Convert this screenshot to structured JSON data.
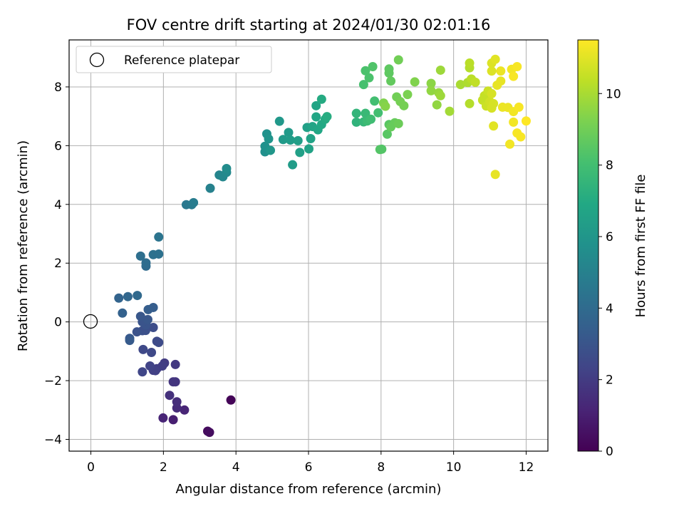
{
  "chart_data": {
    "type": "scatter",
    "title": "FOV centre drift starting at 2024/01/30 02:01:16",
    "xlabel": "Angular distance from reference (arcmin)",
    "ylabel": "Rotation from reference (arcmin)",
    "xlim": [
      -0.6,
      12.6
    ],
    "ylim": [
      -4.4,
      9.6
    ],
    "xticks": [
      0,
      2,
      4,
      6,
      8,
      10,
      12
    ],
    "yticks": [
      -4,
      -2,
      0,
      2,
      4,
      6,
      8
    ],
    "xtick_labels": [
      "0",
      "2",
      "4",
      "6",
      "8",
      "10",
      "12"
    ],
    "ytick_labels": [
      "−4",
      "−2",
      "0",
      "2",
      "4",
      "6",
      "8"
    ],
    "grid": true,
    "legend": {
      "placement": "upper-left",
      "entries": [
        "Reference platepar"
      ]
    },
    "reference_point": {
      "x": 0,
      "y": 0
    },
    "colorbar": {
      "label": "Hours from first FF file",
      "colormap": "viridis",
      "range": [
        0,
        11.5
      ],
      "ticks": [
        0,
        2,
        4,
        6,
        8,
        10
      ],
      "tick_labels": [
        "0",
        "2",
        "4",
        "6",
        "8",
        "10"
      ]
    },
    "points": [
      {
        "x": 3.86,
        "y": -2.66,
        "t": 0.1
      },
      {
        "x": 3.22,
        "y": -3.72,
        "t": 0.3
      },
      {
        "x": 3.27,
        "y": -3.76,
        "t": 0.4
      },
      {
        "x": 2.27,
        "y": -3.33,
        "t": 1.0
      },
      {
        "x": 1.99,
        "y": -3.27,
        "t": 1.2
      },
      {
        "x": 2.58,
        "y": -3.0,
        "t": 1.2
      },
      {
        "x": 2.37,
        "y": -2.93,
        "t": 1.4
      },
      {
        "x": 2.37,
        "y": -2.72,
        "t": 1.5
      },
      {
        "x": 2.17,
        "y": -2.5,
        "t": 1.6
      },
      {
        "x": 2.27,
        "y": -2.04,
        "t": 1.8
      },
      {
        "x": 2.33,
        "y": -2.04,
        "t": 1.8
      },
      {
        "x": 2.33,
        "y": -1.45,
        "t": 1.9
      },
      {
        "x": 2.03,
        "y": -1.4,
        "t": 2.0
      },
      {
        "x": 1.97,
        "y": -1.5,
        "t": 2.1
      },
      {
        "x": 1.82,
        "y": -1.59,
        "t": 2.1
      },
      {
        "x": 1.72,
        "y": -1.65,
        "t": 2.2
      },
      {
        "x": 1.78,
        "y": -1.66,
        "t": 2.2
      },
      {
        "x": 1.63,
        "y": -1.5,
        "t": 2.3
      },
      {
        "x": 1.42,
        "y": -1.7,
        "t": 2.4
      },
      {
        "x": 1.44,
        "y": -0.94,
        "t": 2.5
      },
      {
        "x": 1.67,
        "y": -1.04,
        "t": 2.5
      },
      {
        "x": 1.82,
        "y": -0.66,
        "t": 2.6
      },
      {
        "x": 1.87,
        "y": -0.7,
        "t": 2.6
      },
      {
        "x": 1.72,
        "y": -0.19,
        "t": 2.7
      },
      {
        "x": 1.51,
        "y": -0.29,
        "t": 2.8
      },
      {
        "x": 1.42,
        "y": -0.3,
        "t": 2.8
      },
      {
        "x": 1.27,
        "y": -0.34,
        "t": 2.9
      },
      {
        "x": 1.52,
        "y": -0.1,
        "t": 3.0
      },
      {
        "x": 1.42,
        "y": 0.0,
        "t": 3.0
      },
      {
        "x": 1.57,
        "y": 0.08,
        "t": 3.1
      },
      {
        "x": 1.37,
        "y": 0.19,
        "t": 3.1
      },
      {
        "x": 1.07,
        "y": -0.56,
        "t": 3.2
      },
      {
        "x": 1.07,
        "y": -0.63,
        "t": 3.3
      },
      {
        "x": 1.58,
        "y": 0.42,
        "t": 3.4
      },
      {
        "x": 1.72,
        "y": 0.49,
        "t": 3.4
      },
      {
        "x": 0.87,
        "y": 0.3,
        "t": 3.6
      },
      {
        "x": 0.77,
        "y": 0.81,
        "t": 3.7
      },
      {
        "x": 1.02,
        "y": 0.86,
        "t": 3.8
      },
      {
        "x": 1.28,
        "y": 0.9,
        "t": 3.9
      },
      {
        "x": 1.52,
        "y": 1.9,
        "t": 4.0
      },
      {
        "x": 1.52,
        "y": 2.01,
        "t": 4.1
      },
      {
        "x": 1.37,
        "y": 2.24,
        "t": 4.2
      },
      {
        "x": 1.72,
        "y": 2.29,
        "t": 4.3
      },
      {
        "x": 1.87,
        "y": 2.31,
        "t": 4.3
      },
      {
        "x": 1.87,
        "y": 2.89,
        "t": 4.4
      },
      {
        "x": 2.63,
        "y": 3.99,
        "t": 4.6
      },
      {
        "x": 2.78,
        "y": 3.99,
        "t": 4.7
      },
      {
        "x": 2.83,
        "y": 4.06,
        "t": 4.8
      },
      {
        "x": 3.29,
        "y": 4.55,
        "t": 5.0
      },
      {
        "x": 3.54,
        "y": 5.0,
        "t": 5.2
      },
      {
        "x": 3.64,
        "y": 4.94,
        "t": 5.3
      },
      {
        "x": 3.74,
        "y": 5.09,
        "t": 5.4
      },
      {
        "x": 3.74,
        "y": 5.22,
        "t": 5.5
      },
      {
        "x": 4.8,
        "y": 5.79,
        "t": 5.7
      },
      {
        "x": 4.8,
        "y": 5.98,
        "t": 5.8
      },
      {
        "x": 4.85,
        "y": 6.4,
        "t": 5.8
      },
      {
        "x": 4.9,
        "y": 6.23,
        "t": 5.9
      },
      {
        "x": 4.95,
        "y": 5.84,
        "t": 6.0
      },
      {
        "x": 5.2,
        "y": 6.83,
        "t": 6.1
      },
      {
        "x": 5.3,
        "y": 6.21,
        "t": 6.2
      },
      {
        "x": 5.45,
        "y": 6.45,
        "t": 6.2
      },
      {
        "x": 5.5,
        "y": 6.19,
        "t": 6.3
      },
      {
        "x": 5.56,
        "y": 5.35,
        "t": 6.3
      },
      {
        "x": 5.71,
        "y": 6.17,
        "t": 6.4
      },
      {
        "x": 5.76,
        "y": 5.77,
        "t": 6.5
      },
      {
        "x": 5.96,
        "y": 6.62,
        "t": 6.5
      },
      {
        "x": 6.01,
        "y": 5.89,
        "t": 6.6
      },
      {
        "x": 6.06,
        "y": 6.24,
        "t": 6.6
      },
      {
        "x": 6.11,
        "y": 6.65,
        "t": 6.7
      },
      {
        "x": 6.21,
        "y": 7.36,
        "t": 6.7
      },
      {
        "x": 6.21,
        "y": 6.98,
        "t": 6.8
      },
      {
        "x": 6.26,
        "y": 6.54,
        "t": 6.8
      },
      {
        "x": 6.36,
        "y": 6.72,
        "t": 6.9
      },
      {
        "x": 6.36,
        "y": 7.58,
        "t": 7.0
      },
      {
        "x": 6.46,
        "y": 6.9,
        "t": 7.0
      },
      {
        "x": 6.51,
        "y": 6.99,
        "t": 7.1
      },
      {
        "x": 7.32,
        "y": 6.8,
        "t": 7.4
      },
      {
        "x": 7.32,
        "y": 7.1,
        "t": 7.5
      },
      {
        "x": 7.52,
        "y": 6.81,
        "t": 7.6
      },
      {
        "x": 7.57,
        "y": 7.1,
        "t": 7.7
      },
      {
        "x": 7.62,
        "y": 6.84,
        "t": 7.8
      },
      {
        "x": 7.72,
        "y": 6.9,
        "t": 7.9
      },
      {
        "x": 7.82,
        "y": 7.52,
        "t": 8.0
      },
      {
        "x": 7.92,
        "y": 7.12,
        "t": 8.0
      },
      {
        "x": 7.52,
        "y": 8.08,
        "t": 8.1
      },
      {
        "x": 7.57,
        "y": 8.55,
        "t": 8.2
      },
      {
        "x": 7.67,
        "y": 8.31,
        "t": 8.2
      },
      {
        "x": 7.77,
        "y": 8.69,
        "t": 8.3
      },
      {
        "x": 7.97,
        "y": 5.87,
        "t": 8.4
      },
      {
        "x": 8.02,
        "y": 5.88,
        "t": 8.4
      },
      {
        "x": 8.17,
        "y": 6.39,
        "t": 8.5
      },
      {
        "x": 8.22,
        "y": 6.72,
        "t": 8.5
      },
      {
        "x": 8.22,
        "y": 8.47,
        "t": 8.6
      },
      {
        "x": 8.22,
        "y": 8.61,
        "t": 8.6
      },
      {
        "x": 8.27,
        "y": 8.2,
        "t": 8.7
      },
      {
        "x": 8.27,
        "y": 6.64,
        "t": 8.8
      },
      {
        "x": 8.38,
        "y": 6.78,
        "t": 8.8
      },
      {
        "x": 8.48,
        "y": 6.75,
        "t": 8.9
      },
      {
        "x": 8.43,
        "y": 7.66,
        "t": 9.0
      },
      {
        "x": 8.48,
        "y": 8.92,
        "t": 9.0
      },
      {
        "x": 8.53,
        "y": 7.5,
        "t": 9.1
      },
      {
        "x": 8.63,
        "y": 7.36,
        "t": 9.1
      },
      {
        "x": 8.73,
        "y": 7.74,
        "t": 9.2
      },
      {
        "x": 8.93,
        "y": 8.17,
        "t": 9.3
      },
      {
        "x": 8.07,
        "y": 7.45,
        "t": 9.3
      },
      {
        "x": 8.12,
        "y": 7.34,
        "t": 9.4
      },
      {
        "x": 9.38,
        "y": 8.12,
        "t": 9.5
      },
      {
        "x": 9.38,
        "y": 7.87,
        "t": 9.6
      },
      {
        "x": 9.54,
        "y": 7.39,
        "t": 9.6
      },
      {
        "x": 9.59,
        "y": 7.8,
        "t": 9.7
      },
      {
        "x": 9.64,
        "y": 7.7,
        "t": 9.8
      },
      {
        "x": 9.64,
        "y": 8.57,
        "t": 9.8
      },
      {
        "x": 9.89,
        "y": 7.17,
        "t": 9.9
      },
      {
        "x": 10.19,
        "y": 8.08,
        "t": 10.0
      },
      {
        "x": 10.39,
        "y": 8.15,
        "t": 10.1
      },
      {
        "x": 10.44,
        "y": 7.43,
        "t": 10.2
      },
      {
        "x": 10.44,
        "y": 8.65,
        "t": 10.2
      },
      {
        "x": 10.44,
        "y": 8.81,
        "t": 10.3
      },
      {
        "x": 10.49,
        "y": 8.27,
        "t": 10.3
      },
      {
        "x": 10.6,
        "y": 8.16,
        "t": 10.4
      },
      {
        "x": 10.8,
        "y": 7.55,
        "t": 10.5
      },
      {
        "x": 10.85,
        "y": 7.7,
        "t": 10.5
      },
      {
        "x": 10.9,
        "y": 7.35,
        "t": 10.6
      },
      {
        "x": 10.95,
        "y": 7.86,
        "t": 10.6
      },
      {
        "x": 11.0,
        "y": 7.5,
        "t": 10.7
      },
      {
        "x": 11.05,
        "y": 7.28,
        "t": 10.8
      },
      {
        "x": 11.05,
        "y": 7.77,
        "t": 10.8
      },
      {
        "x": 11.1,
        "y": 7.43,
        "t": 10.8
      },
      {
        "x": 11.05,
        "y": 8.54,
        "t": 10.9
      },
      {
        "x": 11.05,
        "y": 8.81,
        "t": 10.9
      },
      {
        "x": 11.15,
        "y": 8.94,
        "t": 11.0
      },
      {
        "x": 11.1,
        "y": 6.67,
        "t": 11.0
      },
      {
        "x": 11.15,
        "y": 5.02,
        "t": 11.1
      },
      {
        "x": 11.2,
        "y": 8.06,
        "t": 11.1
      },
      {
        "x": 11.3,
        "y": 8.2,
        "t": 11.1
      },
      {
        "x": 11.3,
        "y": 8.54,
        "t": 11.2
      },
      {
        "x": 11.35,
        "y": 7.31,
        "t": 11.2
      },
      {
        "x": 11.5,
        "y": 7.3,
        "t": 11.2
      },
      {
        "x": 11.55,
        "y": 6.05,
        "t": 11.3
      },
      {
        "x": 11.6,
        "y": 8.6,
        "t": 11.3
      },
      {
        "x": 11.65,
        "y": 6.8,
        "t": 11.3
      },
      {
        "x": 11.65,
        "y": 7.16,
        "t": 11.3
      },
      {
        "x": 11.65,
        "y": 8.36,
        "t": 11.4
      },
      {
        "x": 11.75,
        "y": 6.43,
        "t": 11.4
      },
      {
        "x": 11.75,
        "y": 8.69,
        "t": 11.4
      },
      {
        "x": 11.8,
        "y": 7.31,
        "t": 11.4
      },
      {
        "x": 11.85,
        "y": 6.3,
        "t": 11.4
      },
      {
        "x": 12.0,
        "y": 6.84,
        "t": 11.5
      }
    ]
  }
}
